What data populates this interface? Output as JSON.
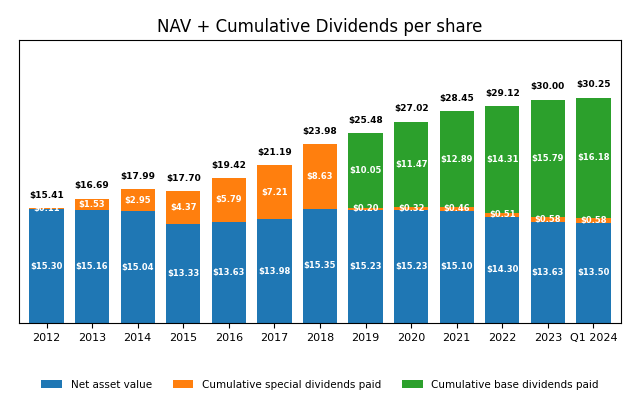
{
  "chart_data": {
    "type": "bar",
    "stacked": true,
    "title": "NAV + Cumulative Dividends per share",
    "categories": [
      "2012",
      "2013",
      "2014",
      "2015",
      "2016",
      "2017",
      "2018",
      "2019",
      "2020",
      "2021",
      "2022",
      "2023",
      "Q1 2024"
    ],
    "series": [
      {
        "name": "Net asset value",
        "values": [
          15.3,
          15.16,
          15.04,
          13.33,
          13.63,
          13.98,
          15.35,
          15.23,
          15.23,
          15.1,
          14.3,
          13.63,
          13.5
        ],
        "value_labels": [
          "$15.30",
          "$15.16",
          "$15.04",
          "$13.33",
          "$13.63",
          "$13.98",
          "$15.35",
          "$15.23",
          "$15.23",
          "$15.10",
          "$14.30",
          "$13.63",
          "$13.50"
        ]
      },
      {
        "name": "Cumulative special dividends paid",
        "values": [
          0.11,
          1.53,
          2.95,
          4.37,
          5.79,
          7.21,
          8.63,
          0.2,
          0.32,
          0.46,
          0.51,
          0.58,
          0.58
        ],
        "value_labels": [
          "$0.11",
          "$1.53",
          "$2.95",
          "$4.37",
          "$5.79",
          "$7.21",
          "$8.63",
          "$0.20",
          "$0.32",
          "$0.46",
          "$0.51",
          "$0.58",
          "$0.58"
        ]
      },
      {
        "name": "Cumulative base dividends paid",
        "values": [
          0.0,
          0.0,
          0.0,
          0.0,
          0.0,
          0.0,
          0.0,
          10.05,
          11.47,
          12.89,
          14.31,
          15.79,
          16.18
        ],
        "value_labels": [
          null,
          null,
          null,
          null,
          null,
          null,
          null,
          "$10.05",
          "$11.47",
          "$12.89",
          "$14.31",
          "$15.79",
          "$16.18"
        ]
      }
    ],
    "totals": [
      15.41,
      16.69,
      17.99,
      17.7,
      19.42,
      21.19,
      23.98,
      25.48,
      27.02,
      28.45,
      29.12,
      30.0,
      30.25
    ],
    "total_labels": [
      "$15.41",
      "$16.69",
      "$17.99",
      "$17.70",
      "$19.42",
      "$21.19",
      "$23.98",
      "$25.48",
      "$27.02",
      "$28.45",
      "$29.12",
      "$30.00",
      "$30.25"
    ],
    "ylim": [
      0,
      38
    ],
    "tick_labels": "x",
    "data_labels": true,
    "legend": "lower center"
  }
}
